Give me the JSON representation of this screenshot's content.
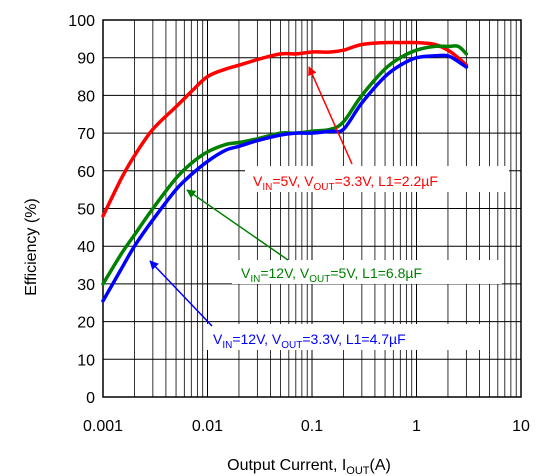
{
  "chart_data": {
    "type": "line",
    "title": "",
    "xlabel": {
      "main": "Output Current, I",
      "sub": "OUT",
      "tail": "(A)"
    },
    "ylabel": "Efficiency (%)",
    "xscale": "log",
    "xlim": [
      0.001,
      10
    ],
    "ylim": [
      0,
      100
    ],
    "grid": true,
    "x_ticks": [
      0.001,
      0.01,
      0.1,
      1,
      10
    ],
    "x_tick_labels": [
      "0.001",
      "0.01",
      "0.1",
      "1",
      "10"
    ],
    "y_ticks": [
      0,
      10,
      20,
      30,
      40,
      50,
      60,
      70,
      80,
      90,
      100
    ],
    "y_tick_labels": [
      "0",
      "10",
      "20",
      "30",
      "40",
      "50",
      "60",
      "70",
      "80",
      "90",
      "100"
    ],
    "series": [
      {
        "color": "#ff0000",
        "annotation": {
          "a": "V",
          "a_sub": "IN",
          "b": "=5V, V",
          "b_sub": "OUT",
          "c": "=3.3V, L1=2.2µF"
        },
        "x": [
          0.001,
          0.0015,
          0.002,
          0.003,
          0.005,
          0.007,
          0.01,
          0.015,
          0.02,
          0.03,
          0.05,
          0.07,
          0.1,
          0.15,
          0.2,
          0.3,
          0.5,
          0.7,
          1.0,
          1.5,
          2.0,
          2.5,
          3.0
        ],
        "y": [
          48,
          58,
          64,
          71,
          77,
          81,
          85,
          87,
          88,
          89.5,
          91,
          91,
          91.5,
          91.5,
          92,
          93.5,
          94,
          94,
          94,
          93.5,
          92,
          90,
          88
        ]
      },
      {
        "color": "#008000",
        "annotation": {
          "a": "V",
          "a_sub": "IN",
          "b": "=12V, V",
          "b_sub": "OUT",
          "c": "=5V, L1=6.8µF"
        },
        "x": [
          0.001,
          0.0015,
          0.002,
          0.003,
          0.005,
          0.007,
          0.01,
          0.015,
          0.02,
          0.03,
          0.05,
          0.07,
          0.1,
          0.15,
          0.2,
          0.3,
          0.5,
          0.7,
          1.0,
          1.5,
          2.0,
          2.5,
          3.0
        ],
        "y": [
          30,
          38,
          43,
          50,
          58,
          62,
          65,
          67,
          67.5,
          68.5,
          70,
          70,
          70.5,
          71,
          73,
          80,
          87,
          90,
          92,
          93,
          93,
          93,
          91
        ]
      },
      {
        "color": "#0000ff",
        "annotation": {
          "a": "V",
          "a_sub": "IN",
          "b": "=12V, V",
          "b_sub": "OUT",
          "c": "=3.3V, L1=4.7µF"
        },
        "x": [
          0.001,
          0.0015,
          0.002,
          0.003,
          0.005,
          0.007,
          0.01,
          0.015,
          0.02,
          0.03,
          0.05,
          0.07,
          0.1,
          0.15,
          0.2,
          0.3,
          0.5,
          0.7,
          1.0,
          1.5,
          2.0,
          2.5,
          3.0
        ],
        "y": [
          25.5,
          34,
          40,
          47,
          55,
          59,
          62.5,
          65.5,
          66.5,
          68,
          69.5,
          70,
          70,
          70.5,
          71,
          78,
          85,
          88,
          90,
          90.5,
          90.5,
          89,
          87.5
        ]
      }
    ]
  }
}
